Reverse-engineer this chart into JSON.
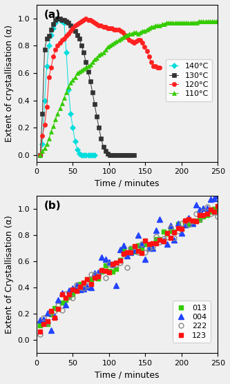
{
  "panel_a": {
    "title": "(a)",
    "xlabel": "Time / minutes",
    "ylabel": "Extent of crystallisation (α)",
    "xlim": [
      0,
      250
    ],
    "ylim": [
      -0.05,
      1.1
    ],
    "yticks": [
      0.0,
      0.2,
      0.4,
      0.6,
      0.8,
      1.0
    ],
    "series": [
      {
        "label": "140°C",
        "color": "#00DDDD",
        "marker": "D",
        "markersize": 5,
        "x": [
          5,
          8,
          11,
          14,
          17,
          20,
          23,
          26,
          29,
          32,
          35,
          38,
          41,
          44,
          47,
          50,
          53,
          56,
          59,
          62,
          65,
          68,
          71,
          74,
          77,
          80
        ],
        "y": [
          0.0,
          0.08,
          0.4,
          0.65,
          0.8,
          0.88,
          0.93,
          0.97,
          1.0,
          0.99,
          0.98,
          0.97,
          0.75,
          0.48,
          0.3,
          0.2,
          0.1,
          0.04,
          0.01,
          0.0,
          0.0,
          0.0,
          0.0,
          0.0,
          0.0,
          0.0
        ]
      },
      {
        "label": "130°C",
        "color": "#333333",
        "marker": "s",
        "markersize": 5,
        "x": [
          5,
          8,
          11,
          14,
          17,
          20,
          23,
          26,
          29,
          32,
          35,
          38,
          41,
          44,
          47,
          50,
          53,
          56,
          59,
          62,
          65,
          68,
          71,
          74,
          77,
          80,
          83,
          86,
          89,
          92,
          95,
          98,
          101,
          104,
          107,
          110,
          113,
          116,
          119,
          122,
          125,
          128,
          131,
          134
        ],
        "y": [
          0.0,
          0.3,
          0.77,
          0.85,
          0.87,
          0.92,
          0.96,
          0.99,
          1.0,
          1.0,
          0.99,
          0.99,
          0.98,
          0.97,
          0.95,
          0.93,
          0.91,
          0.88,
          0.85,
          0.8,
          0.75,
          0.68,
          0.61,
          0.54,
          0.46,
          0.37,
          0.28,
          0.2,
          0.12,
          0.06,
          0.03,
          0.01,
          0.0,
          0.0,
          0.0,
          0.0,
          0.0,
          0.0,
          0.0,
          0.0,
          0.0,
          0.0,
          0.0,
          0.0
        ]
      },
      {
        "label": "120°C",
        "color": "#FF2020",
        "marker": "o",
        "markersize": 5,
        "x": [
          5,
          8,
          11,
          14,
          17,
          20,
          23,
          26,
          29,
          32,
          35,
          38,
          41,
          44,
          47,
          50,
          53,
          56,
          59,
          62,
          65,
          68,
          71,
          74,
          77,
          80,
          83,
          86,
          89,
          92,
          95,
          98,
          101,
          104,
          107,
          110,
          113,
          116,
          119,
          122,
          125,
          128,
          131,
          134,
          137,
          140,
          143,
          146,
          149,
          152,
          155,
          158,
          161,
          164,
          167,
          170
        ],
        "y": [
          0.0,
          0.14,
          0.22,
          0.35,
          0.57,
          0.64,
          0.72,
          0.77,
          0.8,
          0.82,
          0.84,
          0.85,
          0.87,
          0.89,
          0.91,
          0.93,
          0.95,
          0.96,
          0.97,
          0.98,
          0.99,
          1.0,
          0.99,
          0.99,
          0.98,
          0.97,
          0.96,
          0.95,
          0.95,
          0.94,
          0.94,
          0.93,
          0.93,
          0.93,
          0.92,
          0.92,
          0.92,
          0.91,
          0.9,
          0.88,
          0.86,
          0.84,
          0.83,
          0.82,
          0.83,
          0.84,
          0.84,
          0.82,
          0.79,
          0.76,
          0.72,
          0.68,
          0.65,
          0.65,
          0.64,
          0.64
        ]
      },
      {
        "label": "110°C",
        "color": "#33CC00",
        "marker": "^",
        "markersize": 5,
        "x": [
          5,
          8,
          11,
          14,
          17,
          20,
          23,
          26,
          29,
          32,
          35,
          38,
          41,
          44,
          47,
          50,
          53,
          56,
          59,
          62,
          65,
          68,
          71,
          74,
          77,
          80,
          83,
          86,
          89,
          92,
          95,
          98,
          101,
          104,
          107,
          110,
          113,
          116,
          119,
          122,
          125,
          128,
          131,
          134,
          137,
          140,
          143,
          146,
          149,
          152,
          155,
          158,
          161,
          164,
          167,
          170,
          173,
          176,
          179,
          182,
          185,
          188,
          191,
          194,
          197,
          200,
          203,
          206,
          209,
          212,
          215,
          218,
          221,
          224,
          227,
          230,
          233,
          236,
          239,
          242,
          245,
          248
        ],
        "y": [
          0.0,
          0.03,
          0.05,
          0.08,
          0.12,
          0.17,
          0.21,
          0.26,
          0.3,
          0.34,
          0.38,
          0.42,
          0.46,
          0.5,
          0.53,
          0.55,
          0.57,
          0.6,
          0.61,
          0.62,
          0.63,
          0.64,
          0.65,
          0.66,
          0.68,
          0.7,
          0.71,
          0.73,
          0.74,
          0.75,
          0.77,
          0.79,
          0.8,
          0.81,
          0.82,
          0.83,
          0.84,
          0.85,
          0.86,
          0.87,
          0.88,
          0.89,
          0.89,
          0.9,
          0.9,
          0.89,
          0.9,
          0.91,
          0.91,
          0.92,
          0.93,
          0.94,
          0.94,
          0.95,
          0.95,
          0.95,
          0.96,
          0.96,
          0.97,
          0.97,
          0.97,
          0.97,
          0.97,
          0.97,
          0.97,
          0.97,
          0.97,
          0.97,
          0.97,
          0.97,
          0.97,
          0.97,
          0.97,
          0.98,
          0.98,
          0.98,
          0.98,
          0.98,
          0.98,
          0.98,
          0.98,
          0.98
        ]
      }
    ]
  },
  "panel_b": {
    "title": "(b)",
    "xlabel": "Time / minutes",
    "ylabel": "Extent of Crystallisation (α)",
    "xlim": [
      0,
      250
    ],
    "ylim": [
      -0.1,
      1.1
    ],
    "yticks": [
      0.0,
      0.2,
      0.4,
      0.6,
      0.8,
      1.0
    ]
  },
  "figsize": [
    3.33,
    5.57
  ],
  "dpi": 100,
  "background_color": "#efefef"
}
